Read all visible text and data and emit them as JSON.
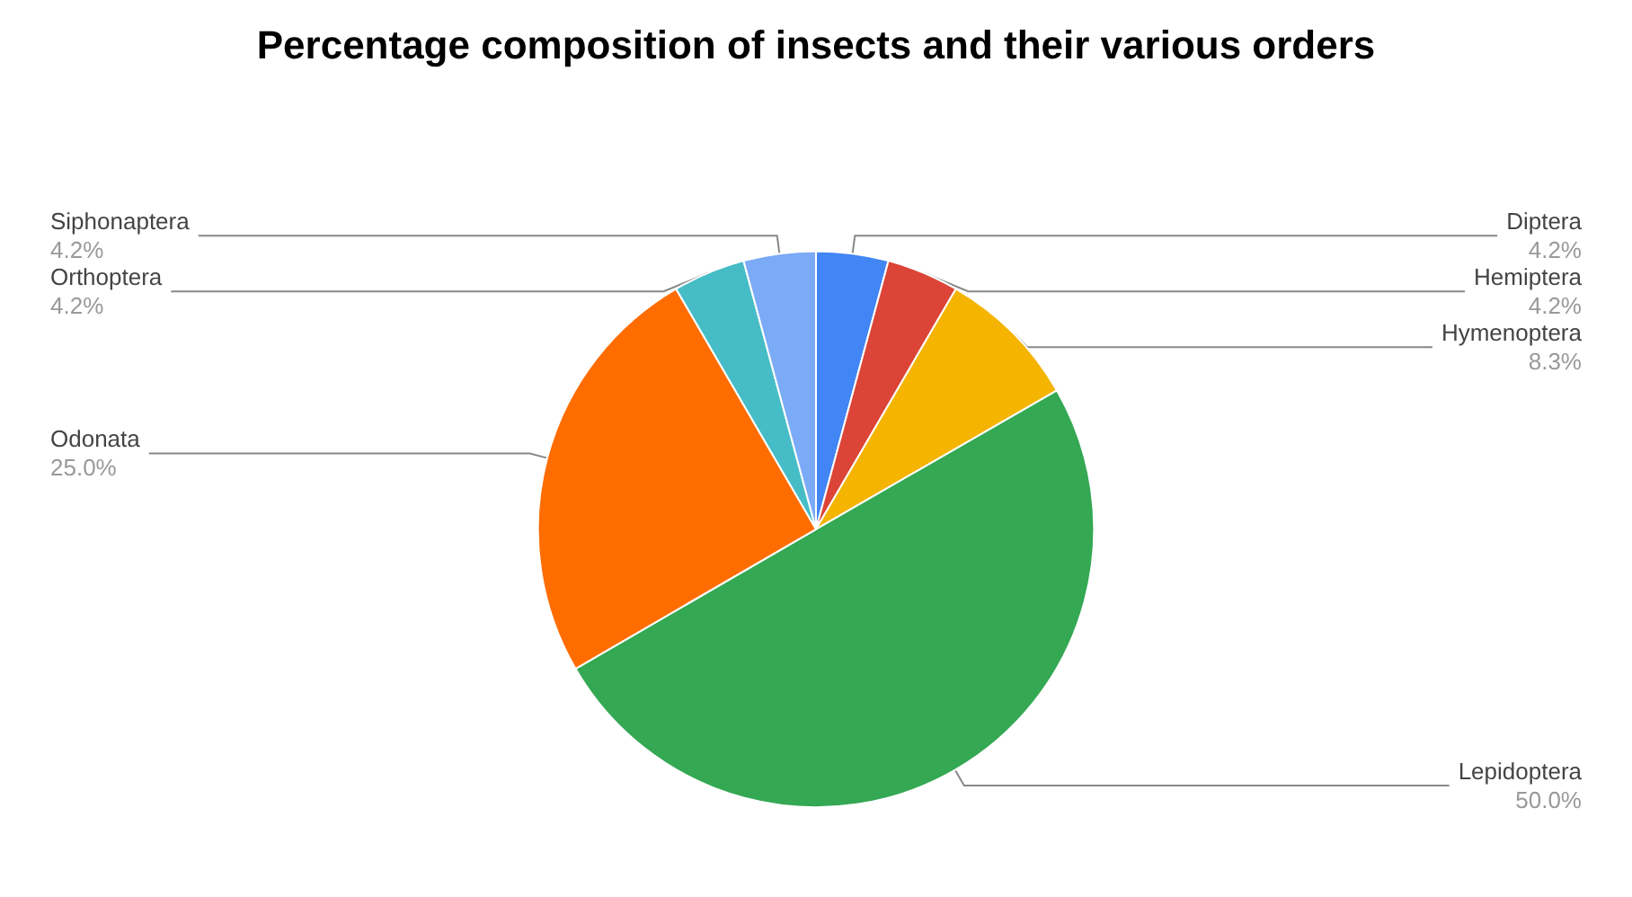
{
  "chart_data": {
    "type": "pie",
    "title": "Percentage composition of insects and their various orders",
    "categories": [
      "Diptera",
      "Hemiptera",
      "Hymenoptera",
      "Lepidoptera",
      "Odonata",
      "Orthoptera",
      "Siphonaptera"
    ],
    "values": [
      4.2,
      4.2,
      8.3,
      50.0,
      25.0,
      4.2,
      4.2
    ],
    "value_labels": [
      "4.2%",
      "4.2%",
      "8.3%",
      "50.0%",
      "25.0%",
      "4.2%",
      "4.2%"
    ],
    "colors": [
      "#4285f4",
      "#db4437",
      "#f4b400",
      "#34a853",
      "#ff6d01",
      "#46bdc6",
      "#7baaf7"
    ]
  }
}
